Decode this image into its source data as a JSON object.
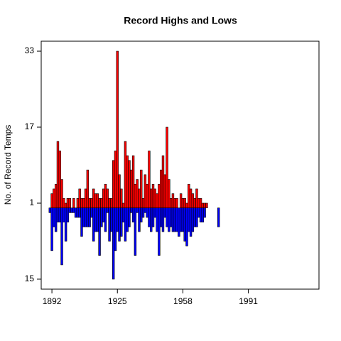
{
  "chart_data": {
    "type": "bar",
    "title": "Record Highs and Lows",
    "y_label": "No. of Record Temps",
    "x": [
      1891,
      1892,
      1893,
      1894,
      1895,
      1896,
      1897,
      1898,
      1899,
      1900,
      1901,
      1902,
      1903,
      1904,
      1905,
      1906,
      1907,
      1908,
      1909,
      1910,
      1911,
      1912,
      1913,
      1914,
      1915,
      1916,
      1917,
      1918,
      1919,
      1920,
      1921,
      1922,
      1923,
      1924,
      1925,
      1926,
      1927,
      1928,
      1929,
      1930,
      1931,
      1932,
      1933,
      1934,
      1935,
      1936,
      1937,
      1938,
      1939,
      1940,
      1941,
      1942,
      1943,
      1944,
      1945,
      1946,
      1947,
      1948,
      1949,
      1950,
      1951,
      1952,
      1953,
      1954,
      1955,
      1956,
      1957,
      1958,
      1959,
      1960,
      1961,
      1962,
      1963,
      1964,
      1965,
      1966,
      1967,
      1968,
      1969,
      1970,
      1971,
      1972,
      1973,
      1974,
      1975,
      1976
    ],
    "series": [
      {
        "color": "#ff0000",
        "values": [
          0,
          3,
          4,
          5,
          14,
          12,
          6,
          2,
          1,
          2,
          2,
          0,
          2,
          0,
          2,
          4,
          2,
          2,
          4,
          8,
          2,
          2,
          4,
          3,
          3,
          2,
          2,
          4,
          5,
          4,
          2,
          2,
          10,
          12,
          33,
          7,
          4,
          1,
          14,
          11,
          10,
          8,
          11,
          5,
          6,
          4,
          8,
          2,
          7,
          5,
          12,
          4,
          5,
          4,
          3,
          5,
          8,
          11,
          7,
          17,
          6,
          2,
          3,
          2,
          2,
          0,
          3,
          2,
          2,
          1,
          5,
          4,
          3,
          2,
          4,
          2,
          2,
          1,
          1,
          1,
          0,
          0,
          0,
          0,
          0,
          0
        ]
      },
      {
        "color": "#0000ff",
        "values": [
          -1,
          -9,
          -4,
          -5,
          -3,
          -3,
          -12,
          -3,
          -7,
          -3,
          -1,
          -1,
          -1,
          -2,
          -2,
          -2,
          -6,
          -4,
          -4,
          -4,
          -4,
          -2,
          -7,
          -5,
          -5,
          -10,
          -4,
          -3,
          -5,
          -1,
          -7,
          -5,
          -15,
          -9,
          -5,
          -7,
          -6,
          -3,
          -7,
          -5,
          -4,
          -1,
          -3,
          -10,
          -1,
          -5,
          -3,
          -2,
          -1,
          -2,
          -4,
          -5,
          -4,
          -2,
          -5,
          -10,
          -4,
          -5,
          -2,
          -4,
          -5,
          -4,
          -5,
          -5,
          -5,
          -6,
          -5,
          -5,
          -7,
          -8,
          -5,
          -6,
          -5,
          -4,
          -4,
          -2,
          -3,
          -3,
          -2,
          0,
          0,
          0,
          0,
          0,
          0,
          -4
        ]
      }
    ],
    "xlim": [
      1886.6,
      2026.6
    ],
    "xticks": [
      1892,
      1925,
      1958,
      1991
    ],
    "ylim": [
      -17.1,
      35.1
    ],
    "yticks": [
      33,
      17,
      1,
      {
        "value": -15,
        "label": "15"
      }
    ]
  }
}
